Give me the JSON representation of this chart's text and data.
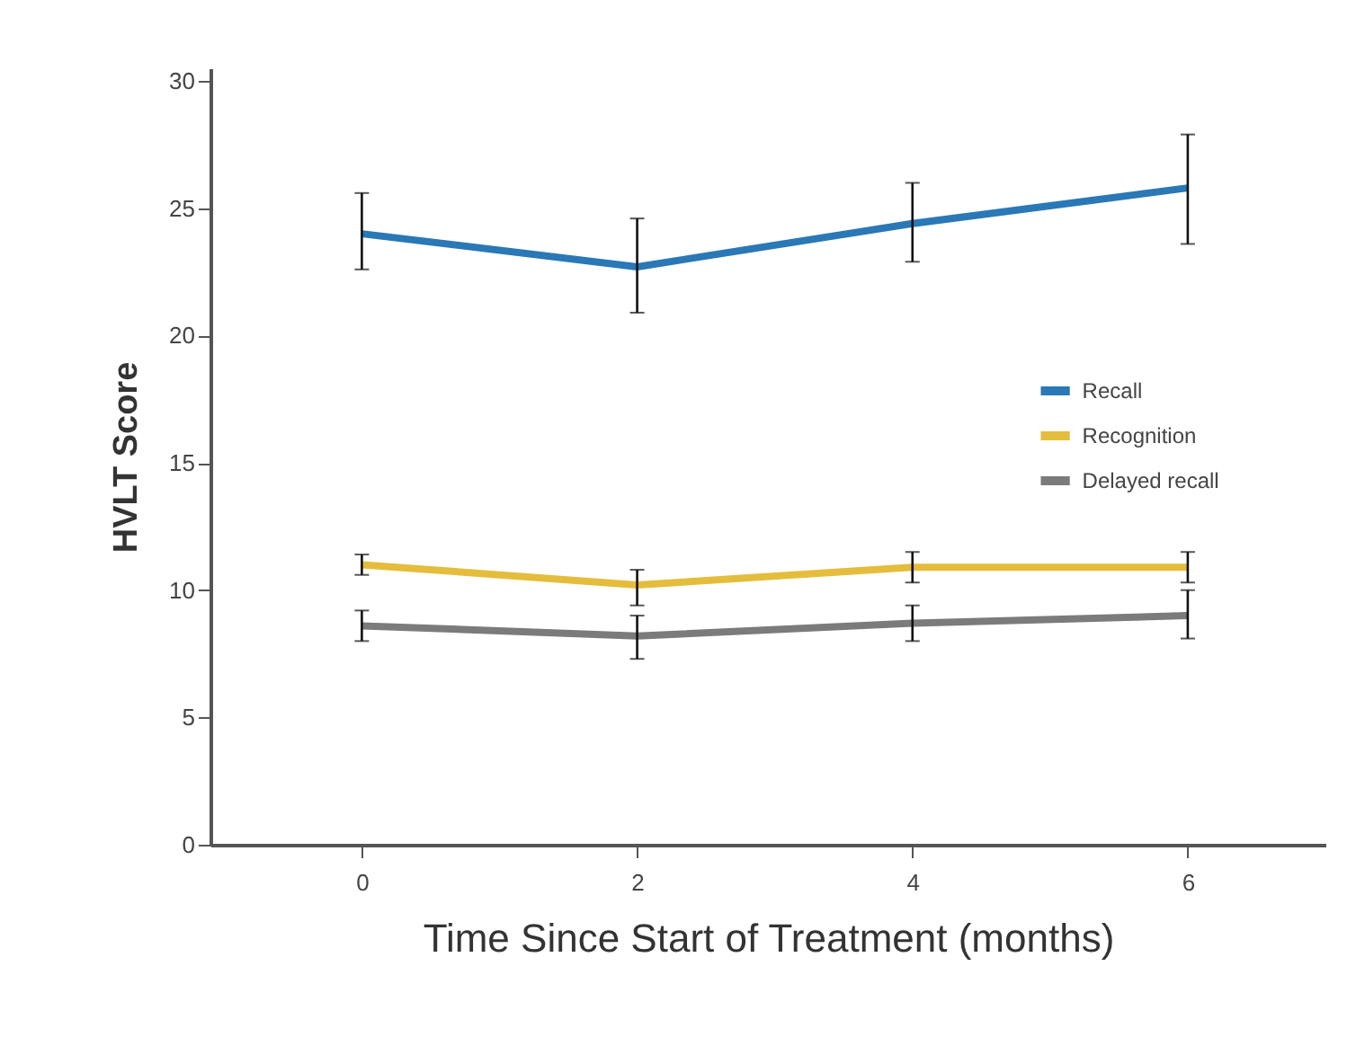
{
  "chart_data": {
    "type": "line",
    "xlabel": "Time Since Start of Treatment (months)",
    "ylabel": "HVLT Score",
    "x": [
      0,
      2,
      4,
      6
    ],
    "xlim": [
      -1.1,
      7
    ],
    "xticks": [
      0,
      2,
      4,
      6
    ],
    "ylim": [
      0,
      30.5
    ],
    "yticks": [
      0,
      5,
      10,
      15,
      20,
      25,
      30
    ],
    "grid": false,
    "legend": "right",
    "marker": "none",
    "line_style": "solid",
    "series": [
      {
        "name": "Recall",
        "color": "#2a78b5",
        "values": [
          24.0,
          22.7,
          24.4,
          25.8
        ],
        "errors": [
          [
            22.6,
            25.6
          ],
          [
            20.9,
            24.6
          ],
          [
            22.9,
            26.0
          ],
          [
            23.6,
            27.9
          ]
        ]
      },
      {
        "name": "Recognition",
        "color": "#e5bd3c",
        "values": [
          11.0,
          10.2,
          10.9,
          10.9
        ],
        "errors": [
          [
            10.6,
            11.4
          ],
          [
            9.4,
            10.8
          ],
          [
            10.3,
            11.5
          ],
          [
            10.3,
            11.5
          ]
        ]
      },
      {
        "name": "Delayed recall",
        "color": "#7b7b7b",
        "values": [
          8.6,
          8.2,
          8.7,
          9.0
        ],
        "errors": [
          [
            8.0,
            9.2
          ],
          [
            7.3,
            9.0
          ],
          [
            8.0,
            9.4
          ],
          [
            8.1,
            10.0
          ]
        ]
      }
    ]
  }
}
